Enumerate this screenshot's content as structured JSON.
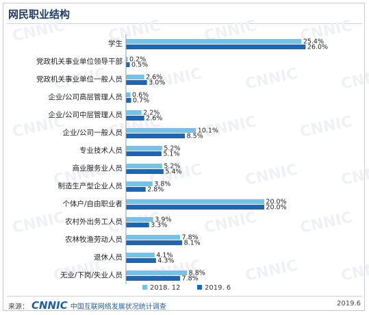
{
  "page": {
    "title": "网民职业结构",
    "footer_source_label": "来源：",
    "footer_brand": "CNNIC",
    "footer_org": "中国互联网络发展状况统计调查",
    "footer_date": "2019.6",
    "watermark": "CNNIC"
  },
  "colors": {
    "series1": "#70c4ea",
    "series2": "#1a66b8",
    "label_text": "#222222"
  },
  "chart_data": {
    "type": "bar",
    "orientation": "horizontal",
    "categories": [
      "学生",
      "党政机关事业单位领导干部",
      "党政机关事业单位一般人员",
      "企业/公司高层管理人员",
      "企业/公司中层管理人员",
      "企业/公司一般人员",
      "专业技术人员",
      "商业服务业人员",
      "制造生产型企业人员",
      "个体户/自由职业者",
      "农村外出务工人员",
      "农林牧渔劳动人员",
      "退休人员",
      "无业/下岗/失业人员"
    ],
    "series": [
      {
        "name": "2018. 12",
        "values": [
          25.4,
          0.2,
          2.6,
          0.6,
          2.2,
          10.1,
          5.2,
          5.2,
          3.8,
          20.0,
          3.9,
          7.8,
          4.1,
          8.8
        ],
        "labels": [
          "25.4%",
          "0.2%",
          "2.6%",
          "0.6%",
          "2.2%",
          "10.1%",
          "5.2%",
          "5.2%",
          "3.8%",
          "20.0%",
          "3.9%",
          "7.8%",
          "4.1%",
          "8.8%"
        ]
      },
      {
        "name": "2019. 6",
        "values": [
          26.0,
          0.5,
          3.0,
          0.7,
          2.6,
          8.5,
          5.1,
          5.4,
          2.8,
          20.0,
          3.3,
          8.1,
          4.3,
          7.8
        ],
        "labels": [
          "26.0%",
          "0.5%",
          "3.0%",
          "0.7%",
          "2.6%",
          "8.5%",
          "5.1%",
          "5.4%",
          "2.8%",
          "20.0%",
          "3.3%",
          "8.1%",
          "4.3%",
          "7.8%"
        ]
      }
    ],
    "xlim": [
      0,
      28
    ],
    "legend_position": "bottom",
    "grid": false
  }
}
